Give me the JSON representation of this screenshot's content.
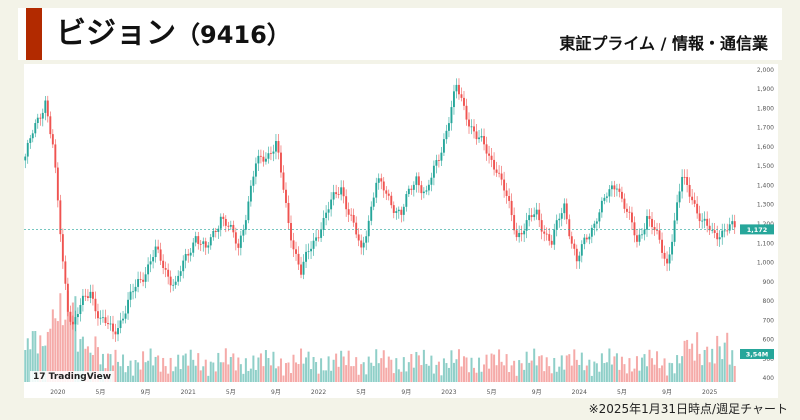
{
  "header": {
    "company": "ビジョン",
    "code": "（9416）",
    "market": "東証プライム / 情報・通信業"
  },
  "footnote": "※2025年1月31日時点/週足チャート",
  "watermark": {
    "logo": "17",
    "text": "TradingView"
  },
  "colors": {
    "up": "#26a69a",
    "down": "#ef5350",
    "accent": "#b22a00",
    "vol_up": "#8fcfc8",
    "vol_down": "#f5aaa8",
    "last": "#26a69a"
  },
  "chart_data": {
    "type": "candlestick",
    "x_ticks": [
      "2020",
      "5月",
      "9月",
      "2021",
      "5月",
      "9月",
      "2022",
      "5月",
      "9月",
      "2023",
      "5月",
      "9月",
      "2024",
      "5月",
      "9月",
      "2025"
    ],
    "y_ticks": [
      400,
      500,
      600,
      700,
      800,
      900,
      1000,
      1100,
      1200,
      1300,
      1400,
      1500,
      1600,
      1700,
      1800,
      1900,
      2000
    ],
    "y_tick_labels": [
      "400",
      "500",
      "600",
      "700",
      "800",
      "900",
      "1,000",
      "1,100",
      "1,200",
      "1,300",
      "1,400",
      "1,500",
      "1,600",
      "1,700",
      "1,800",
      "1,900",
      "2,000"
    ],
    "ylim": [
      380,
      2020
    ],
    "last_price": 1172,
    "last_price_label": "1,172",
    "last_volume_label": "3,54M",
    "series": [
      {
        "name": "price",
        "period_index": [
          0,
          4,
          8,
          11,
          13,
          15,
          17,
          19,
          22,
          26,
          30,
          35,
          40,
          45,
          52,
          60,
          68,
          72,
          78,
          85,
          92,
          100,
          105,
          110,
          118,
          126,
          134,
          140,
          150,
          156,
          160,
          165,
          168,
          172,
          180,
          188,
          196,
          204,
          210,
          215,
          220,
          228,
          236,
          244,
          248,
          256,
          262,
          266,
          270,
          274,
          276,
          280
        ],
        "close": [
          1550,
          1700,
          1850,
          1600,
          1300,
          1000,
          780,
          680,
          760,
          860,
          700,
          640,
          750,
          900,
          1050,
          880,
          1150,
          1050,
          1250,
          1080,
          1500,
          1620,
          1200,
          950,
          1200,
          1400,
          1050,
          1420,
          1250,
          1450,
          1350,
          1550,
          1700,
          1900,
          1650,
          1500,
          1150,
          1250,
          1100,
          1300,
          1000,
          1250,
          1420,
          1100,
          1250,
          1000,
          1430,
          1350,
          1200,
          1150,
          1160,
          1172
        ]
      }
    ]
  }
}
